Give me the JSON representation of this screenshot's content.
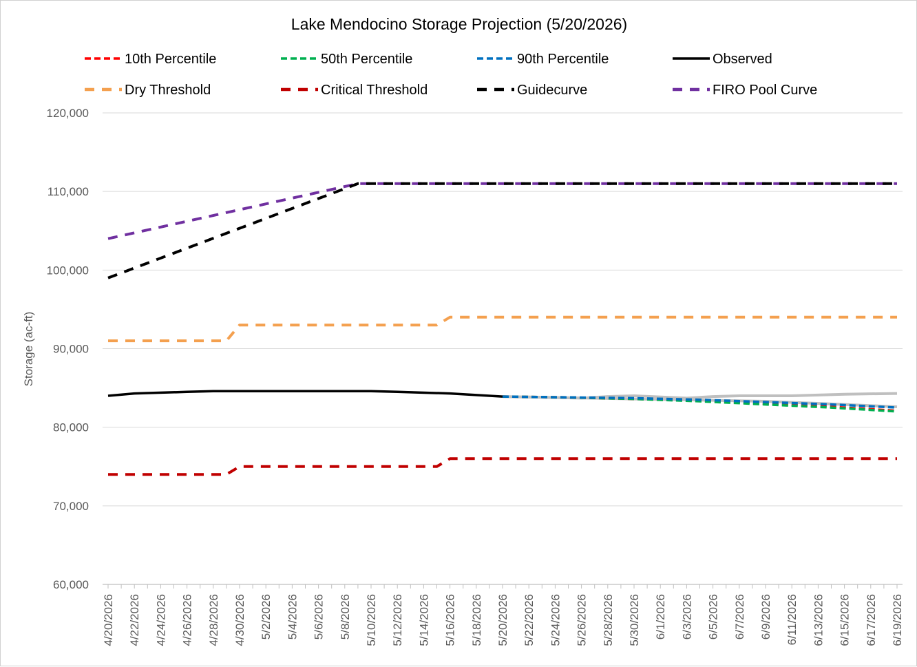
{
  "chart_data": {
    "type": "line",
    "title": "Lake Mendocino Storage Projection (5/20/2026)",
    "ylabel": "Storage (ac-ft)",
    "xlabel": "",
    "ylim": [
      60000,
      120000
    ],
    "yticks": [
      60000,
      70000,
      80000,
      90000,
      100000,
      110000,
      120000
    ],
    "ytick_labels": [
      "60,000",
      "70,000",
      "80,000",
      "90,000",
      "100,000",
      "110,000",
      "120,000"
    ],
    "xrange": [
      0,
      60
    ],
    "xtick_step": 2,
    "x_labels": [
      "4/20/2026",
      "4/22/2026",
      "4/24/2026",
      "4/26/2026",
      "4/28/2026",
      "4/30/2026",
      "5/2/2026",
      "5/4/2026",
      "5/6/2026",
      "5/8/2026",
      "5/10/2026",
      "5/12/2026",
      "5/14/2026",
      "5/16/2026",
      "5/18/2026",
      "5/20/2026",
      "5/22/2026",
      "5/24/2026",
      "5/26/2026",
      "5/28/2026",
      "5/30/2026",
      "6/1/2026",
      "6/3/2026",
      "6/5/2026",
      "6/7/2026",
      "6/9/2026",
      "6/11/2026",
      "6/13/2026",
      "6/15/2026",
      "6/17/2026",
      "6/19/2026"
    ],
    "grid": "horizontal",
    "legend_position": "top",
    "series": [
      {
        "name": "10th Percentile",
        "color": "#ff0000",
        "style": "dashed",
        "x": [
          30,
          35,
          40,
          45,
          50,
          55,
          60
        ],
        "y": [
          83900,
          83800,
          83600,
          83400,
          83000,
          82600,
          82100
        ]
      },
      {
        "name": "50th Percentile",
        "color": "#00b050",
        "style": "dashed",
        "x": [
          30,
          35,
          40,
          45,
          50,
          55,
          60
        ],
        "y": [
          83900,
          83800,
          83600,
          83300,
          82900,
          82500,
          82000
        ]
      },
      {
        "name": "90th Percentile",
        "color": "#0070c0",
        "style": "dashed",
        "x": [
          30,
          35,
          40,
          45,
          50,
          55,
          60
        ],
        "y": [
          83900,
          83800,
          83700,
          83500,
          83200,
          82900,
          82500
        ]
      },
      {
        "name": "Observed",
        "color": "#000000",
        "style": "solid",
        "x": [
          0,
          2,
          6,
          8,
          20,
          22,
          26,
          28,
          30
        ],
        "y": [
          84000,
          84300,
          84500,
          84600,
          84600,
          84500,
          84300,
          84100,
          83900
        ]
      },
      {
        "name": "Dry Threshold",
        "color": "#f4a04f",
        "style": "longdash",
        "x": [
          0,
          9,
          10,
          25,
          26,
          60
        ],
        "y": [
          91000,
          91000,
          93000,
          93000,
          94000,
          94000
        ]
      },
      {
        "name": "Critical Threshold",
        "color": "#c00000",
        "style": "longdash",
        "x": [
          0,
          9,
          10,
          25,
          26,
          60
        ],
        "y": [
          74000,
          74000,
          75000,
          75000,
          76000,
          76000
        ]
      },
      {
        "name": "Guidecurve",
        "color": "#000000",
        "style": "longdash",
        "x": [
          0,
          19,
          60
        ],
        "y": [
          99000,
          111000,
          111000
        ]
      },
      {
        "name": "FIRO Pool Curve",
        "color": "#7030a0",
        "style": "longdash",
        "x": [
          0,
          19,
          60
        ],
        "y": [
          104000,
          111000,
          111000
        ]
      }
    ],
    "unlabeled_series": [
      {
        "color": "#bfbfbf",
        "style": "solid",
        "x": [
          30,
          36,
          38,
          40,
          44,
          46,
          48,
          52,
          56,
          60
        ],
        "y": [
          83900,
          83700,
          83900,
          84000,
          83700,
          83900,
          84000,
          84000,
          84200,
          84300
        ]
      },
      {
        "color": "#bfbfbf",
        "style": "solid",
        "x": [
          30,
          40,
          50,
          56,
          60
        ],
        "y": [
          83900,
          83600,
          83300,
          82900,
          82600
        ]
      }
    ]
  }
}
